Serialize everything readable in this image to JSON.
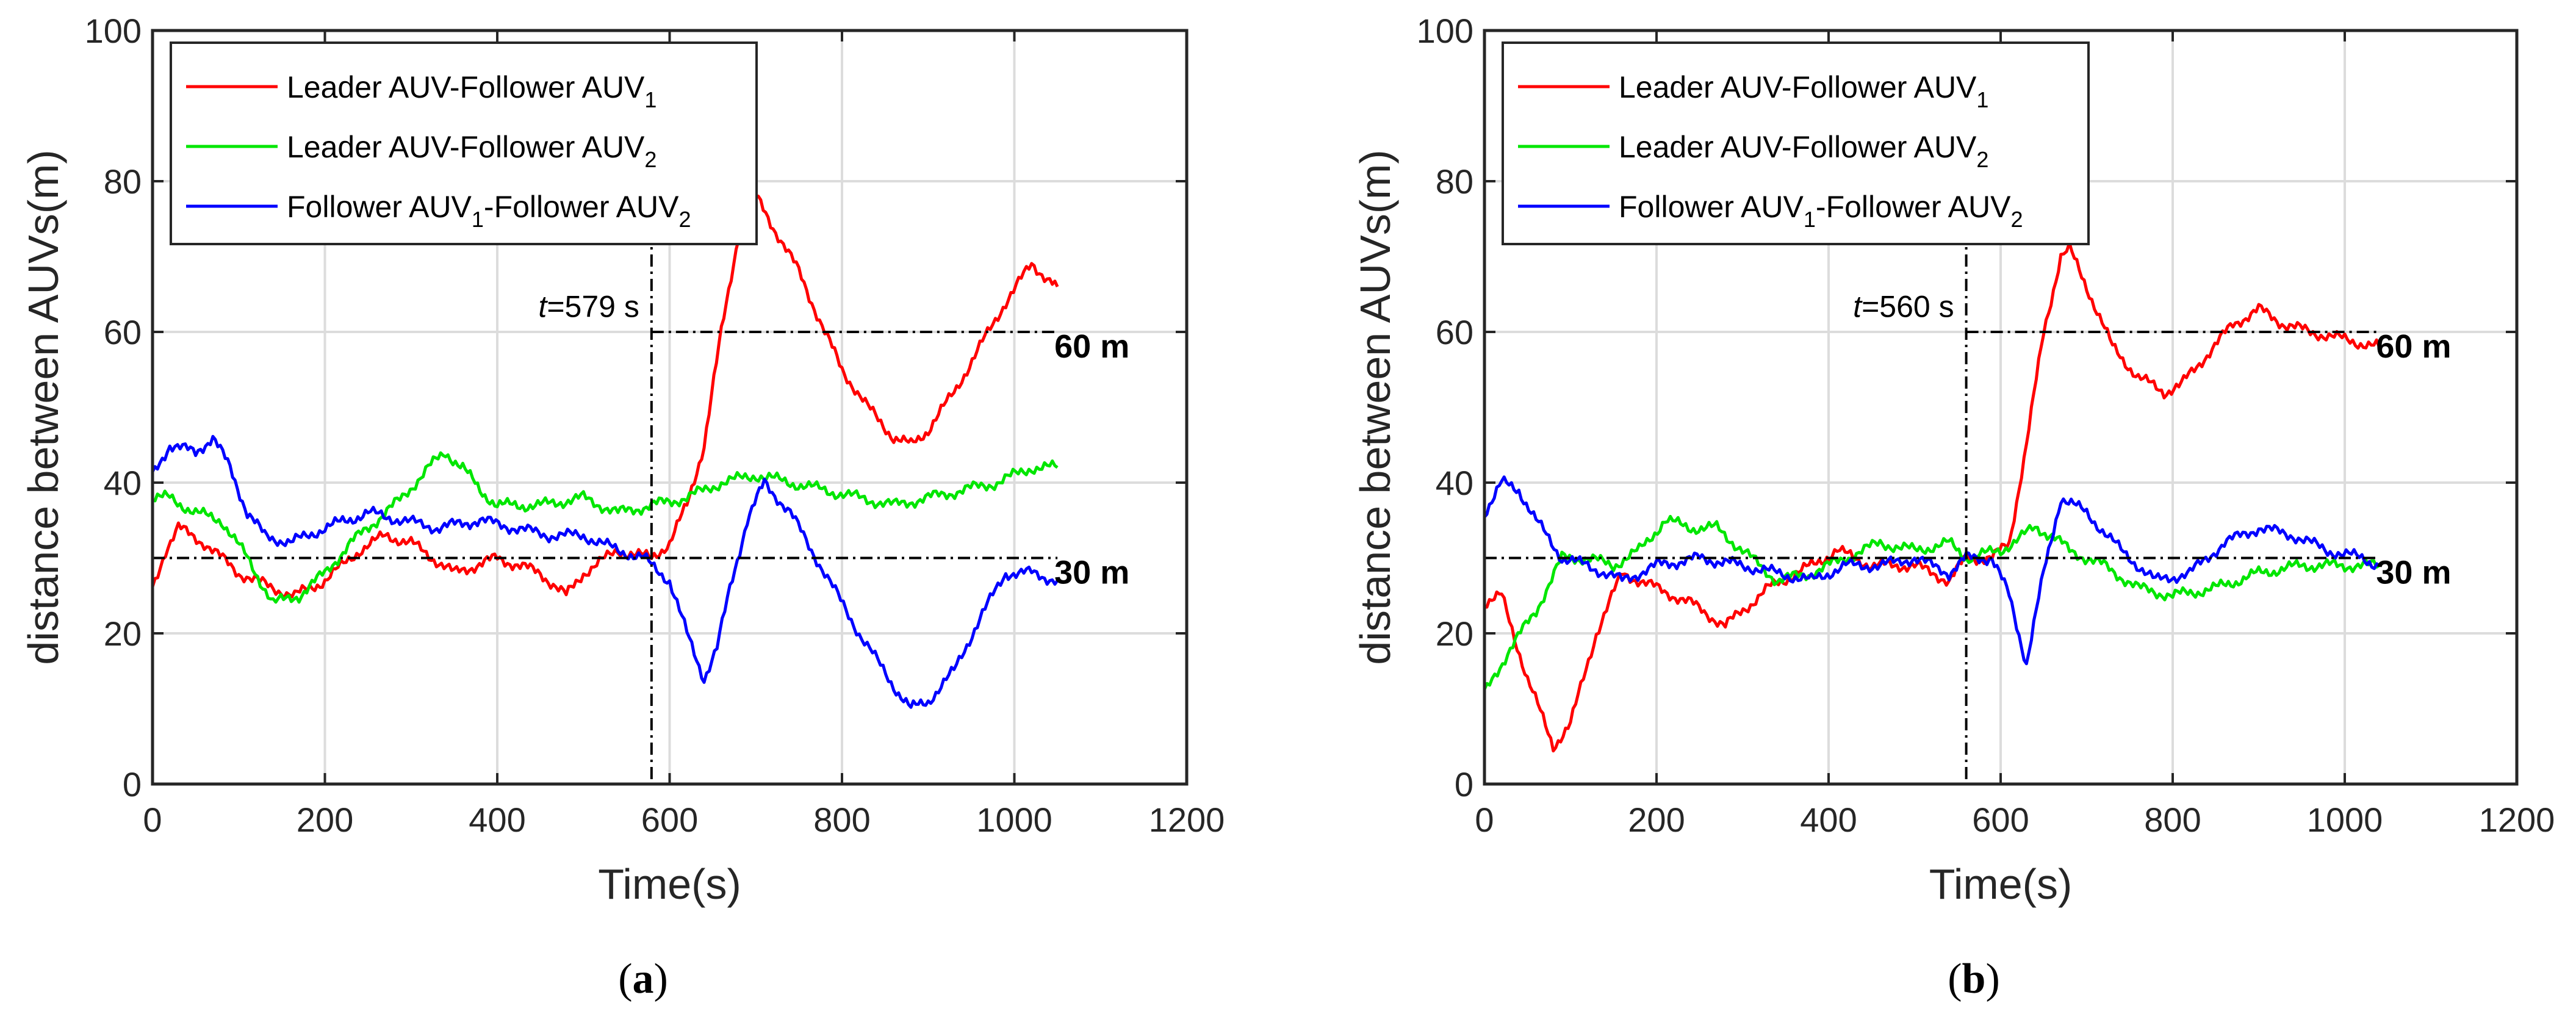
{
  "chart_data": [
    {
      "type": "line",
      "panel_label": "a",
      "xlabel": "Time(s)",
      "ylabel": "distance between AUVs(m)",
      "xlim": [
        0,
        1200
      ],
      "ylim": [
        0,
        100
      ],
      "xticks": [
        0,
        200,
        400,
        600,
        800,
        1000,
        1200
      ],
      "yticks": [
        0,
        20,
        40,
        60,
        80,
        100
      ],
      "grid": true,
      "legend_position": "top-left",
      "series": [
        {
          "name": "Leader AUV-Follower AUV",
          "sub1": "1",
          "mid": "",
          "sub2": "",
          "color": "#ff0000",
          "x": [
            0,
            15,
            30,
            60,
            100,
            140,
            165,
            200,
            240,
            270,
            300,
            350,
            400,
            450,
            480,
            500,
            540,
            579,
            600,
            620,
            640,
            660,
            680,
            690,
            700,
            720,
            750,
            780,
            800,
            830,
            860,
            880,
            900,
            930,
            960,
            990,
            1020,
            1050
          ],
          "y": [
            26,
            31,
            34,
            32,
            28,
            26,
            25,
            27,
            31,
            33,
            32,
            28,
            30,
            28,
            25,
            28,
            31,
            30,
            32,
            37,
            45,
            60,
            73,
            76,
            78,
            74,
            68,
            60,
            55,
            50,
            46,
            45,
            47,
            52,
            58,
            64,
            69,
            66
          ]
        },
        {
          "name": "Leader AUV-Follower AUV",
          "sub1": "2",
          "mid": "",
          "sub2": "",
          "color": "#00e600",
          "x": [
            0,
            20,
            50,
            80,
            110,
            140,
            170,
            200,
            230,
            260,
            290,
            320,
            340,
            360,
            380,
            400,
            450,
            500,
            540,
            579,
            620,
            660,
            700,
            740,
            780,
            820,
            860,
            900,
            940,
            980,
            1020,
            1050
          ],
          "y": [
            38,
            38,
            36,
            35,
            30,
            24,
            25,
            28,
            32,
            35,
            38,
            42,
            44,
            42,
            39,
            37,
            37,
            38,
            36,
            37,
            38,
            40,
            41,
            40,
            39,
            38,
            37,
            38,
            39,
            40,
            42,
            42
          ]
        },
        {
          "name": "Follower AUV",
          "sub1": "1",
          "mid": "-Follower AUV",
          "sub2": "2",
          "color": "#0000ff",
          "x": [
            0,
            20,
            50,
            70,
            90,
            110,
            130,
            160,
            200,
            250,
            290,
            330,
            380,
            420,
            460,
            500,
            540,
            570,
            579,
            600,
            620,
            640,
            655,
            670,
            690,
            710,
            740,
            780,
            820,
            860,
            880,
            900,
            930,
            960,
            990,
            1020,
            1050
          ],
          "y": [
            41,
            45,
            44,
            46,
            42,
            36,
            33,
            32,
            34,
            36,
            35,
            34,
            35,
            34,
            33,
            33,
            31,
            30,
            29,
            27,
            20,
            14,
            18,
            26,
            35,
            40,
            36,
            28,
            20,
            13,
            10,
            11,
            15,
            22,
            28,
            28,
            27
          ]
        }
      ],
      "reference_lines": [
        {
          "label": "30 m",
          "y": 30,
          "x_start": 0,
          "x_end": 1050
        },
        {
          "label": "60 m",
          "y": 60,
          "x_start": 579,
          "x_end": 1050
        }
      ],
      "event": {
        "t": 579,
        "label_italic": "t",
        "label_rest": "=579 s"
      }
    },
    {
      "type": "line",
      "panel_label": "b",
      "xlabel": "Time(s)",
      "ylabel": "distance between AUVs(m)",
      "xlim": [
        0,
        1200
      ],
      "ylim": [
        0,
        100
      ],
      "xticks": [
        0,
        200,
        400,
        600,
        800,
        1000,
        1200
      ],
      "yticks": [
        0,
        20,
        40,
        60,
        80,
        100
      ],
      "grid": true,
      "legend_position": "top-left",
      "series": [
        {
          "name": "Leader AUV-Follower AUV",
          "sub1": "1",
          "mid": "",
          "sub2": "",
          "color": "#ff0000",
          "x": [
            0,
            20,
            50,
            80,
            100,
            130,
            160,
            200,
            240,
            280,
            330,
            380,
            410,
            450,
            500,
            540,
            560,
            590,
            610,
            630,
            650,
            670,
            680,
            700,
            730,
            760,
            790,
            810,
            840,
            870,
            900,
            930,
            960,
            1000,
            1040
          ],
          "y": [
            24,
            25,
            14,
            5,
            8,
            20,
            28,
            26,
            24,
            21,
            26,
            29,
            31,
            29,
            29,
            27,
            30,
            30,
            32,
            45,
            60,
            70,
            71,
            66,
            58,
            54,
            52,
            53,
            57,
            61,
            63,
            61,
            60,
            59,
            58
          ]
        },
        {
          "name": "Leader AUV-Follower AUV",
          "sub1": "2",
          "mid": "",
          "sub2": "",
          "color": "#00e600",
          "x": [
            0,
            30,
            60,
            90,
            120,
            150,
            180,
            210,
            240,
            270,
            300,
            340,
            380,
            420,
            460,
            500,
            540,
            560,
            600,
            640,
            660,
            680,
            720,
            760,
            800,
            850,
            900,
            950,
            1000,
            1040
          ],
          "y": [
            12,
            18,
            23,
            30,
            30,
            29,
            31,
            35,
            34,
            34,
            31,
            27,
            28,
            30,
            32,
            31,
            32,
            30,
            31,
            34,
            33,
            31,
            29,
            26,
            25,
            26,
            28,
            29,
            29,
            29
          ]
        },
        {
          "name": "Follower AUV",
          "sub1": "1",
          "mid": "-Follower AUV",
          "sub2": "2",
          "color": "#0000ff",
          "x": [
            0,
            20,
            40,
            60,
            90,
            120,
            160,
            200,
            250,
            300,
            340,
            380,
            420,
            460,
            500,
            540,
            560,
            590,
            610,
            630,
            650,
            670,
            700,
            740,
            780,
            820,
            860,
            900,
            940,
            980,
            1020,
            1040
          ],
          "y": [
            36,
            40,
            39,
            35,
            30,
            29,
            27,
            29,
            30,
            29,
            28,
            27,
            29,
            29,
            30,
            28,
            30,
            30,
            25,
            16,
            28,
            38,
            36,
            31,
            27,
            28,
            32,
            34,
            33,
            31,
            30,
            29
          ]
        }
      ],
      "reference_lines": [
        {
          "label": "30 m",
          "y": 30,
          "x_start": 0,
          "x_end": 1040
        },
        {
          "label": "60 m",
          "y": 60,
          "x_start": 560,
          "x_end": 1040
        }
      ],
      "event": {
        "t": 560,
        "label_italic": "t",
        "label_rest": "=560 s"
      }
    }
  ]
}
